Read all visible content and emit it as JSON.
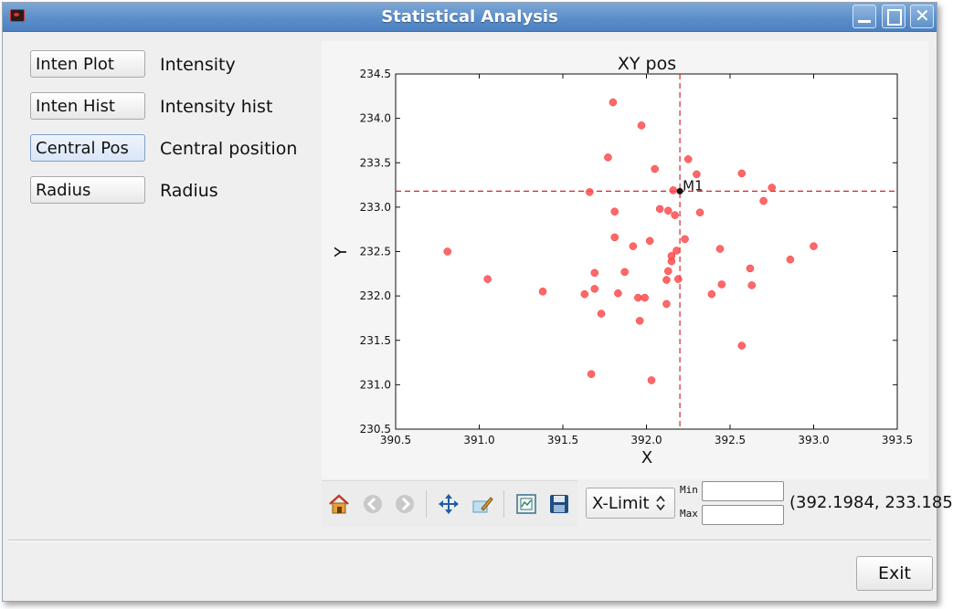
{
  "window": {
    "title": "Statistical Analysis"
  },
  "left_panel": {
    "items": [
      {
        "button": "Inten Plot",
        "label": "Intensity"
      },
      {
        "button": "Inten Hist",
        "label": "Intensity hist"
      },
      {
        "button": "Central Pos",
        "label": "Central position"
      },
      {
        "button": "Radius",
        "label": "Radius"
      }
    ]
  },
  "chart_data": {
    "type": "scatter",
    "title": "XY pos",
    "xlabel": "X",
    "ylabel": "Y",
    "xlim": [
      390.5,
      393.5
    ],
    "ylim": [
      230.5,
      234.5
    ],
    "xticks": [
      "390.5",
      "391.0",
      "391.5",
      "392.0",
      "392.5",
      "393.0",
      "393.5"
    ],
    "yticks": [
      "230.5",
      "231.0",
      "231.5",
      "232.0",
      "232.5",
      "233.0",
      "233.5",
      "234.0",
      "234.5"
    ],
    "point_color": "#ff4d4d",
    "marker": {
      "label": "M1",
      "x": 392.2,
      "y": 233.18
    },
    "points": [
      [
        390.81,
        232.5
      ],
      [
        391.05,
        232.19
      ],
      [
        391.38,
        232.05
      ],
      [
        391.63,
        232.02
      ],
      [
        391.66,
        233.17
      ],
      [
        391.67,
        231.12
      ],
      [
        391.69,
        232.08
      ],
      [
        391.69,
        232.26
      ],
      [
        391.73,
        231.8
      ],
      [
        391.77,
        233.56
      ],
      [
        391.8,
        234.18
      ],
      [
        391.81,
        232.95
      ],
      [
        391.81,
        232.66
      ],
      [
        391.83,
        232.03
      ],
      [
        391.87,
        232.27
      ],
      [
        391.92,
        232.56
      ],
      [
        391.95,
        231.98
      ],
      [
        391.96,
        231.72
      ],
      [
        391.97,
        233.92
      ],
      [
        391.99,
        231.98
      ],
      [
        392.02,
        232.62
      ],
      [
        392.03,
        231.05
      ],
      [
        392.05,
        233.43
      ],
      [
        392.08,
        232.98
      ],
      [
        392.12,
        232.18
      ],
      [
        392.12,
        231.91
      ],
      [
        392.13,
        232.28
      ],
      [
        392.13,
        232.96
      ],
      [
        392.15,
        232.39
      ],
      [
        392.15,
        232.45
      ],
      [
        392.16,
        233.19
      ],
      [
        392.17,
        232.91
      ],
      [
        392.18,
        232.51
      ],
      [
        392.19,
        232.19
      ],
      [
        392.23,
        232.64
      ],
      [
        392.25,
        233.54
      ],
      [
        392.3,
        233.37
      ],
      [
        392.32,
        232.94
      ],
      [
        392.39,
        232.02
      ],
      [
        392.44,
        232.53
      ],
      [
        392.45,
        232.13
      ],
      [
        392.57,
        231.44
      ],
      [
        392.57,
        233.38
      ],
      [
        392.62,
        232.31
      ],
      [
        392.63,
        232.12
      ],
      [
        392.7,
        233.07
      ],
      [
        392.75,
        233.22
      ],
      [
        392.86,
        232.41
      ],
      [
        393.0,
        232.56
      ]
    ]
  },
  "toolbar": {
    "icons": [
      "home-icon",
      "back-icon",
      "forward-icon",
      "pan-icon",
      "edit-axes-icon",
      "subplots-icon",
      "save-icon"
    ],
    "limit_select": "X-Limit",
    "min_label": "Min",
    "max_label": "Max",
    "min_value": "",
    "max_value": "",
    "coords": "(392.1984, 233.185"
  },
  "footer": {
    "exit_label": "Exit"
  },
  "colors": {
    "titlebar": "#5b8fcb",
    "crosshair": "#d62728",
    "points": "#ff4d4d"
  }
}
